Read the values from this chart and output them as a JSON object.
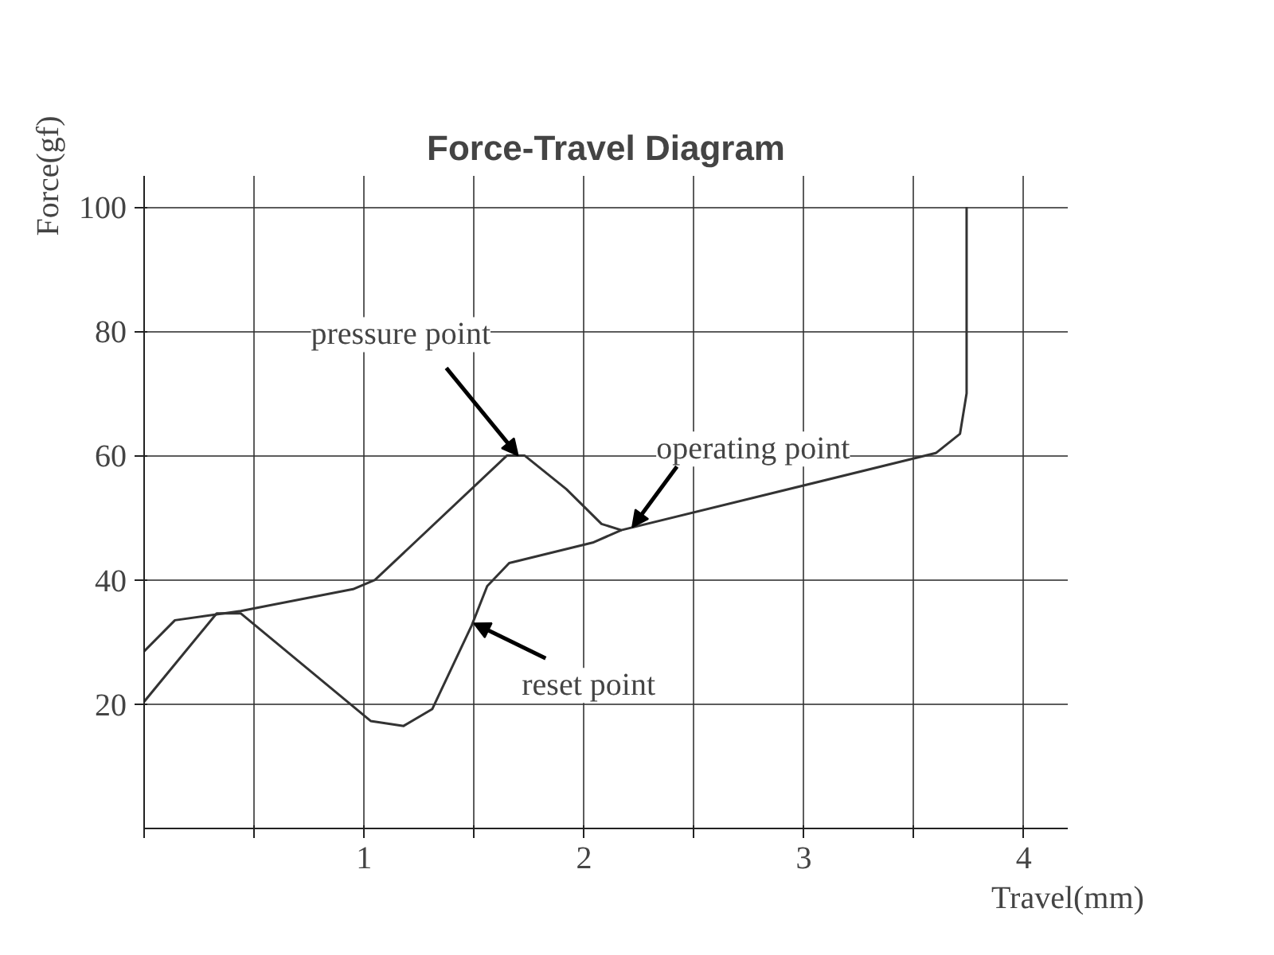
{
  "chart_data": {
    "type": "line",
    "title": "Force-Travel Diagram",
    "xlabel": "Travel(mm)",
    "ylabel": "Force(gf)",
    "series": [
      {
        "color": "#333333",
        "x": [
          0,
          0.14,
          0.44,
          0.95,
          1.05,
          1.65,
          1.73,
          1.92,
          2.08,
          2.17,
          3.6,
          3.71,
          3.74,
          3.74
        ],
        "values": [
          28.5,
          33.5,
          35,
          38.5,
          40,
          60,
          60,
          54.6,
          49,
          48,
          60.4,
          63.5,
          70,
          100
        ]
      },
      {
        "color": "#333333",
        "x": [
          0,
          0.33,
          0.44,
          1.03,
          1.18,
          1.31,
          1.49,
          1.56,
          1.66,
          2.04,
          2.17
        ],
        "values": [
          20.4,
          34.6,
          34.6,
          17.3,
          16.5,
          19.2,
          32.7,
          39,
          42.7,
          46,
          48
        ]
      }
    ],
    "annotations": [
      {
        "text": "pressure point",
        "x": 1.7,
        "y": 60
      },
      {
        "text": "operating point",
        "x": 2.22,
        "y": 48.5
      },
      {
        "text": "reset point",
        "x": 1.5,
        "y": 33
      }
    ],
    "xlim": [
      0,
      4.2
    ],
    "ylim": [
      0,
      105
    ],
    "xticks": [
      {
        "value": 0,
        "label": null
      },
      {
        "value": 0.5,
        "label": null
      },
      1,
      {
        "value": 1.5,
        "label": null
      },
      2,
      {
        "value": 2.5,
        "label": null
      },
      3,
      {
        "value": 3.5,
        "label": null
      },
      4
    ],
    "yticks": [
      20,
      40,
      60,
      80,
      100
    ],
    "grid": true,
    "line_style": "solid",
    "marker": "none"
  }
}
